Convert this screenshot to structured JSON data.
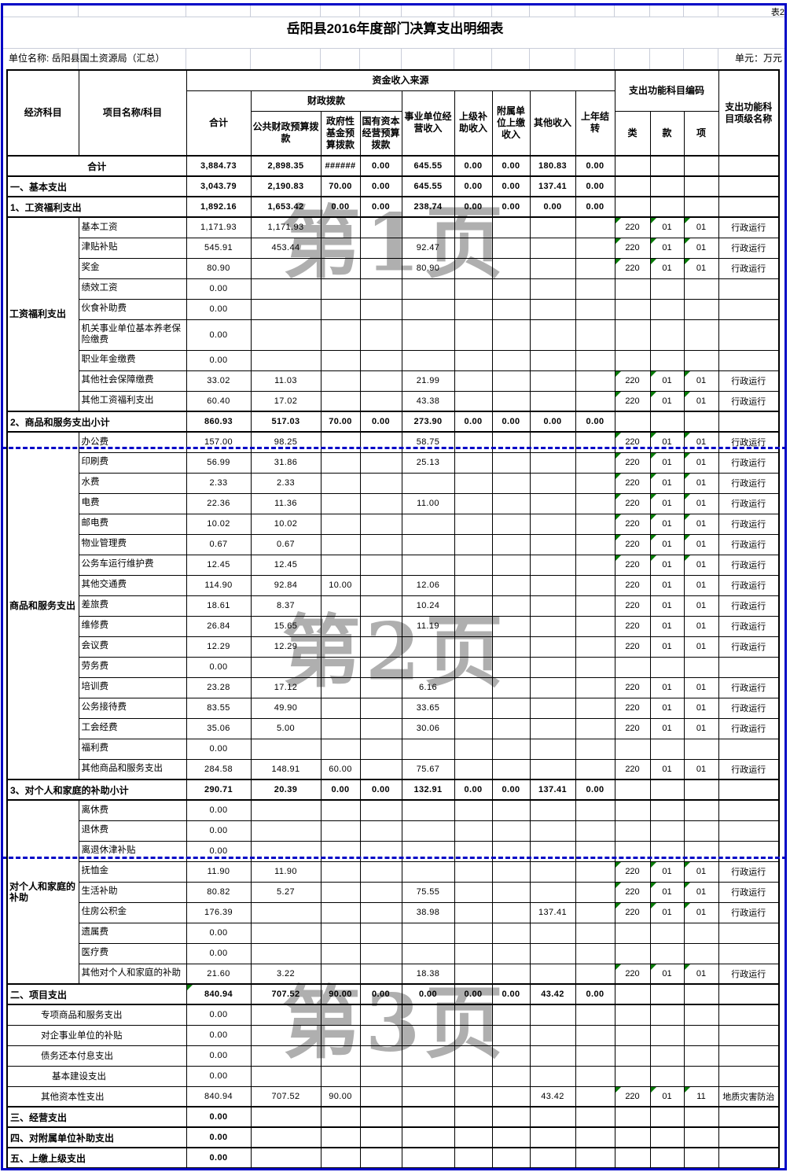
{
  "sheet": {
    "corner_label": "表2",
    "title": "岳阳县2016年度部门决算支出明细表",
    "unit_name": "单位名称: 岳阳县国土资源局（汇总）",
    "unit_of_measure": "单元：万元",
    "watermarks": [
      "第1页",
      "第2页",
      "第3页"
    ],
    "colors": {
      "page_break_blue": "#0004c6",
      "faint_grid": "#c9cdd9",
      "error_marker_green": "#077a07",
      "watermark_gray": "#6e6e6e"
    }
  },
  "header": {
    "economic_subject": "经济科目",
    "project_name": "项目名称/科目",
    "funding_source": "资金收入来源",
    "total": "合计",
    "fiscal": "财政拨款",
    "public_finance_budget": "公共财政预算拨款",
    "govt_fund_budget": "政府性基金预算拨款",
    "state_capital_budget": "国有资本经营预算拨款",
    "business_operating_income": "事业单位经营收入",
    "superior_subsidy_income": "上级补助收入",
    "affiliated_unit_income": "附属单位上缴收入",
    "other_income": "其他收入",
    "prev_year_carryover": "上年结转",
    "function_code": "支出功能科目编码",
    "code_class": "类",
    "code_section": "款",
    "code_item": "项",
    "function_item_name": "支出功能科目项级名称"
  },
  "groups": [
    {
      "label": "工资福利支出",
      "start": 3,
      "span": 9
    },
    {
      "label": "商品和服务支出",
      "start": 13,
      "span": 17
    },
    {
      "label": "对个人和家庭的补助",
      "start": 31,
      "span": 9
    }
  ],
  "rows": [
    {
      "label": "合计",
      "style": "summary",
      "align": "center",
      "values": [
        "3,884.73",
        "2,898.35",
        "######",
        "0.00",
        "645.55",
        "0.00",
        "0.00",
        "180.83",
        "0.00"
      ]
    },
    {
      "label": "一、基本支出",
      "style": "summary",
      "values": [
        "3,043.79",
        "2,190.83",
        "70.00",
        "0.00",
        "645.55",
        "0.00",
        "0.00",
        "137.41",
        "0.00"
      ]
    },
    {
      "label": "1、工资福利支出",
      "style": "summary",
      "values": [
        "1,892.16",
        "1,653.42",
        "0.00",
        "0.00",
        "238.74",
        "0.00",
        "0.00",
        "0.00",
        "0.00"
      ]
    },
    {
      "label": "基本工资",
      "style": "item",
      "values": [
        "1,171.93",
        "1,171.93"
      ],
      "codes": [
        "220",
        "01",
        "01"
      ],
      "func": "行政运行",
      "marker": true
    },
    {
      "label": "津贴补贴",
      "style": "item",
      "values": [
        "545.91",
        "453.44",
        "",
        "",
        "92.47"
      ],
      "codes": [
        "220",
        "01",
        "01"
      ],
      "func": "行政运行",
      "marker": true
    },
    {
      "label": "奖金",
      "style": "item",
      "values": [
        "80.90",
        "",
        "",
        "",
        "80.90"
      ],
      "codes": [
        "220",
        "01",
        "01"
      ],
      "func": "行政运行",
      "marker": true
    },
    {
      "label": "绩效工资",
      "style": "item",
      "values": [
        "0.00"
      ]
    },
    {
      "label": "伙食补助费",
      "style": "item",
      "values": [
        "0.00"
      ]
    },
    {
      "label": "机关事业单位基本养老保险缴费",
      "style": "item",
      "values": [
        "0.00"
      ],
      "h": 39
    },
    {
      "label": "职业年金缴费",
      "style": "item",
      "values": [
        "0.00"
      ]
    },
    {
      "label": "其他社会保障缴费",
      "style": "item",
      "values": [
        "33.02",
        "11.03",
        "",
        "",
        "21.99"
      ],
      "codes": [
        "220",
        "01",
        "01"
      ],
      "func": "行政运行",
      "marker": true
    },
    {
      "label": "其他工资福利支出",
      "style": "item",
      "values": [
        "60.40",
        "17.02",
        "",
        "",
        "43.38"
      ],
      "codes": [
        "220",
        "01",
        "01"
      ],
      "func": "行政运行",
      "marker": true
    },
    {
      "label": "2、商品和服务支出小计",
      "style": "summary",
      "values": [
        "860.93",
        "517.03",
        "70.00",
        "0.00",
        "273.90",
        "0.00",
        "0.00",
        "0.00",
        "0.00"
      ]
    },
    {
      "label": "办公费",
      "style": "item",
      "values": [
        "157.00",
        "98.25",
        "",
        "",
        "58.75"
      ],
      "codes": [
        "220",
        "01",
        "01"
      ],
      "func": "行政运行",
      "marker": true
    },
    {
      "label": "印刷费",
      "style": "item",
      "values": [
        "56.99",
        "31.86",
        "",
        "",
        "25.13"
      ],
      "codes": [
        "220",
        "01",
        "01"
      ],
      "func": "行政运行",
      "marker": true
    },
    {
      "label": "水费",
      "style": "item",
      "values": [
        "2.33",
        "2.33"
      ],
      "codes": [
        "220",
        "01",
        "01"
      ],
      "func": "行政运行",
      "marker": true
    },
    {
      "label": "电费",
      "style": "item",
      "values": [
        "22.36",
        "11.36",
        "",
        "",
        "11.00"
      ],
      "codes": [
        "220",
        "01",
        "01"
      ],
      "func": "行政运行",
      "marker": true
    },
    {
      "label": "邮电费",
      "style": "item",
      "values": [
        "10.02",
        "10.02"
      ],
      "codes": [
        "220",
        "01",
        "01"
      ],
      "func": "行政运行",
      "marker": true
    },
    {
      "label": "物业管理费",
      "style": "item",
      "values": [
        "0.67",
        "0.67"
      ],
      "codes": [
        "220",
        "01",
        "01"
      ],
      "func": "行政运行",
      "marker": true
    },
    {
      "label": "公务车运行维护费",
      "style": "item",
      "values": [
        "12.45",
        "12.45"
      ],
      "codes": [
        "220",
        "01",
        "01"
      ],
      "func": "行政运行",
      "marker": true
    },
    {
      "label": "其他交通费",
      "style": "item",
      "values": [
        "114.90",
        "92.84",
        "10.00",
        "",
        "12.06"
      ],
      "codes": [
        "220",
        "01",
        "01"
      ],
      "func": "行政运行"
    },
    {
      "label": "差旅费",
      "style": "item",
      "values": [
        "18.61",
        "8.37",
        "",
        "",
        "10.24"
      ],
      "codes": [
        "220",
        "01",
        "01"
      ],
      "func": "行政运行"
    },
    {
      "label": "维修费",
      "style": "item",
      "values": [
        "26.84",
        "15.65",
        "",
        "",
        "11.19"
      ],
      "codes": [
        "220",
        "01",
        "01"
      ],
      "func": "行政运行"
    },
    {
      "label": "会议费",
      "style": "item",
      "values": [
        "12.29",
        "12.29"
      ],
      "codes": [
        "220",
        "01",
        "01"
      ],
      "func": "行政运行"
    },
    {
      "label": "劳务费",
      "style": "item",
      "values": [
        "0.00"
      ]
    },
    {
      "label": "培训费",
      "style": "item",
      "values": [
        "23.28",
        "17.12",
        "",
        "",
        "6.16"
      ],
      "codes": [
        "220",
        "01",
        "01"
      ],
      "func": "行政运行"
    },
    {
      "label": "公务接待费",
      "style": "item",
      "values": [
        "83.55",
        "49.90",
        "",
        "",
        "33.65"
      ],
      "codes": [
        "220",
        "01",
        "01"
      ],
      "func": "行政运行"
    },
    {
      "label": "工会经费",
      "style": "item",
      "values": [
        "35.06",
        "5.00",
        "",
        "",
        "30.06"
      ],
      "codes": [
        "220",
        "01",
        "01"
      ],
      "func": "行政运行"
    },
    {
      "label": "福利费",
      "style": "item",
      "values": [
        "0.00"
      ]
    },
    {
      "label": "其他商品和服务支出",
      "style": "item",
      "values": [
        "284.58",
        "148.91",
        "60.00",
        "",
        "75.67"
      ],
      "codes": [
        "220",
        "01",
        "01"
      ],
      "func": "行政运行"
    },
    {
      "label": "3、对个人和家庭的补助小计",
      "style": "summary",
      "values": [
        "290.71",
        "20.39",
        "0.00",
        "0.00",
        "132.91",
        "0.00",
        "0.00",
        "137.41",
        "0.00"
      ]
    },
    {
      "label": "离休费",
      "style": "item",
      "values": [
        "0.00"
      ]
    },
    {
      "label": "退休费",
      "style": "item",
      "values": [
        "0.00"
      ]
    },
    {
      "label": "离退休津补贴",
      "style": "item",
      "values": [
        "0.00"
      ]
    },
    {
      "label": "抚恤金",
      "style": "item",
      "values": [
        "11.90",
        "11.90"
      ],
      "codes": [
        "220",
        "01",
        "01"
      ],
      "func": "行政运行",
      "marker": true
    },
    {
      "label": "生活补助",
      "style": "item",
      "values": [
        "80.82",
        "5.27",
        "",
        "",
        "75.55"
      ],
      "codes": [
        "220",
        "01",
        "01"
      ],
      "func": "行政运行",
      "marker": true
    },
    {
      "label": "住房公积金",
      "style": "item",
      "values": [
        "176.39",
        "",
        "",
        "",
        "38.98",
        "",
        "",
        "137.41"
      ],
      "codes": [
        "220",
        "01",
        "01"
      ],
      "func": "行政运行",
      "marker": true
    },
    {
      "label": "遗属费",
      "style": "item",
      "values": [
        "0.00"
      ]
    },
    {
      "label": "医疗费",
      "style": "item",
      "values": [
        "0.00"
      ]
    },
    {
      "label": "其他对个人和家庭的补助",
      "style": "item",
      "values": [
        "21.60",
        "3.22",
        "",
        "",
        "18.38"
      ],
      "codes": [
        "220",
        "01",
        "01"
      ],
      "func": "行政运行",
      "marker": true
    },
    {
      "label": "二、项目支出",
      "style": "summary",
      "values": [
        "840.94",
        "707.52",
        "90.00",
        "0.00",
        "0.00",
        "0.00",
        "0.00",
        "43.42",
        "0.00"
      ],
      "total_marker": true
    },
    {
      "label": "专项商品和服务支出",
      "style": "indent",
      "values": [
        "0.00"
      ]
    },
    {
      "label": "对企事业单位的补贴",
      "style": "indent",
      "values": [
        "0.00"
      ]
    },
    {
      "label": "债务还本付息支出",
      "style": "indent",
      "values": [
        "0.00"
      ]
    },
    {
      "label": "基本建设支出",
      "style": "indent2",
      "values": [
        "0.00"
      ]
    },
    {
      "label": "其他资本性支出",
      "style": "indent",
      "values": [
        "840.94",
        "707.52",
        "90.00",
        "",
        "",
        "",
        "",
        "43.42"
      ],
      "codes": [
        "220",
        "01",
        "11"
      ],
      "func": "地质灾害防治",
      "marker": true
    },
    {
      "label": "三、经营支出",
      "style": "summary",
      "values": [
        "0.00"
      ]
    },
    {
      "label": "四、对附属单位补助支出",
      "style": "summary",
      "values": [
        "0.00"
      ]
    },
    {
      "label": "五、上缴上级支出",
      "style": "summary",
      "values": [
        "0.00"
      ]
    }
  ]
}
